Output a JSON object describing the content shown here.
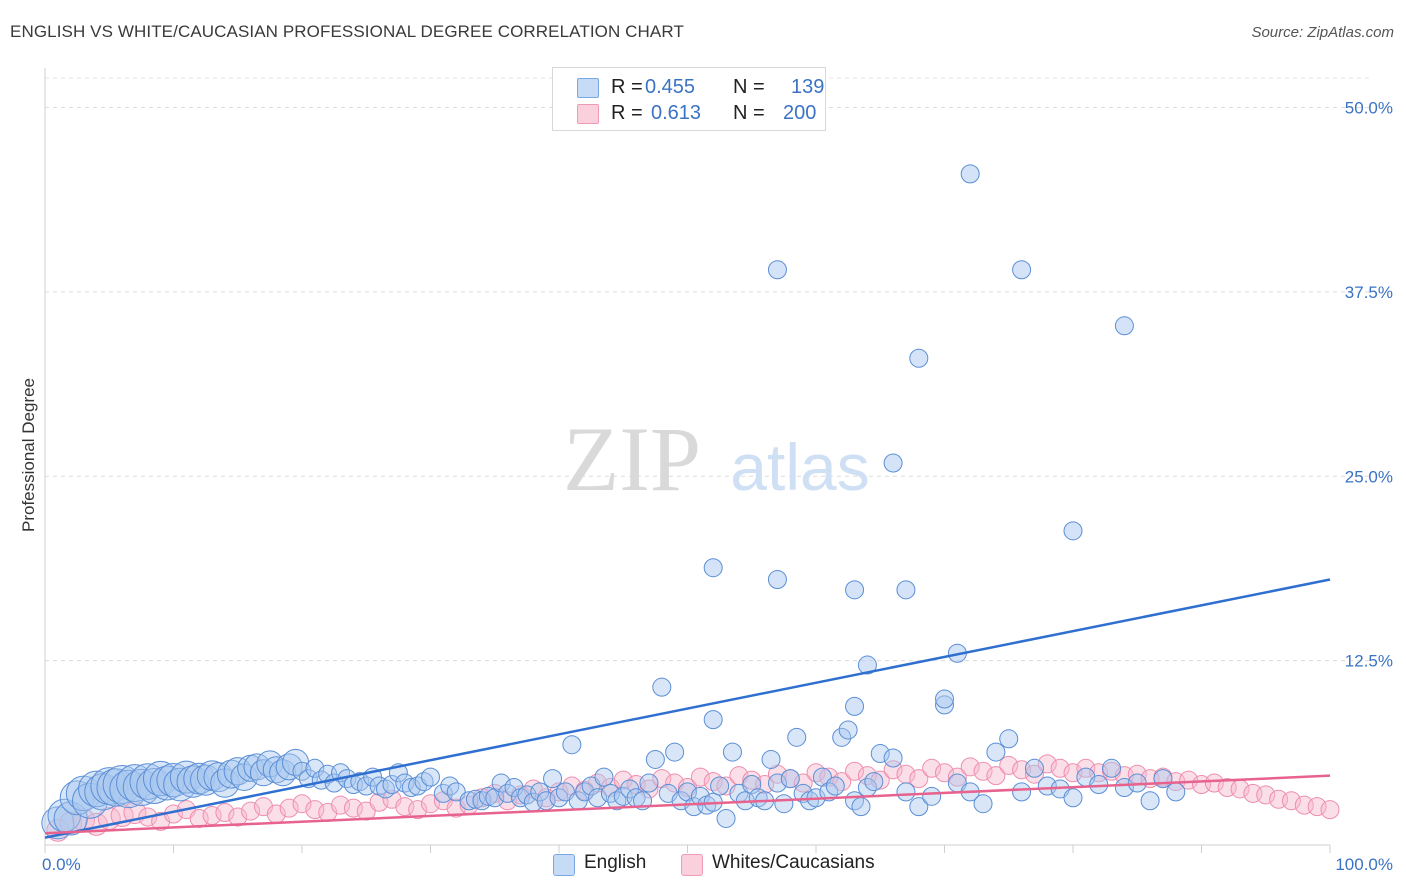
{
  "title": "ENGLISH VS WHITE/CAUCASIAN PROFESSIONAL DEGREE CORRELATION CHART",
  "source": "Source: ZipAtlas.com",
  "watermark": {
    "zip": "ZIP",
    "atlas": "atlas"
  },
  "legend_top": {
    "rows": [
      {
        "r_label": "R =",
        "r_value": "0.455",
        "n_label": "N =",
        "n_value": "139",
        "color": "#a9c8f0"
      },
      {
        "r_label": "R =",
        "r_value": "0.613",
        "n_label": "N =",
        "n_value": "200",
        "color": "#f6b8cb"
      }
    ]
  },
  "legend_bottom": {
    "english": "English",
    "whites": "Whites/Caucasians"
  },
  "chart_data": {
    "type": "scatter",
    "title": "ENGLISH VS WHITE/CAUCASIAN PROFESSIONAL DEGREE CORRELATION CHART",
    "xlabel": "",
    "ylabel": "Professional Degree",
    "xlim": [
      0,
      100
    ],
    "ylim": [
      0,
      52
    ],
    "x_tick_labels": [
      "0.0%",
      "100.0%"
    ],
    "y_ticks": [
      12.5,
      25.0,
      37.5,
      50.0
    ],
    "y_tick_labels": [
      "12.5%",
      "25.0%",
      "37.5%",
      "50.0%"
    ],
    "grid": true,
    "legend_position": "top-center",
    "series": [
      {
        "name": "English",
        "color": "#6d9fe0",
        "line_color": "#2f6fd0",
        "trend": {
          "x": [
            0,
            100
          ],
          "y": [
            0.5,
            18.0
          ]
        },
        "points": [
          [
            1,
            1.5
          ],
          [
            1.5,
            2
          ],
          [
            2,
            1.8
          ],
          [
            2.5,
            3.2
          ],
          [
            3,
            3.5
          ],
          [
            3.5,
            3.0
          ],
          [
            4,
            3.8
          ],
          [
            4.5,
            3.6
          ],
          [
            5,
            4.0
          ],
          [
            5.5,
            3.9
          ],
          [
            6,
            4.1
          ],
          [
            6.5,
            3.8
          ],
          [
            7,
            4.2
          ],
          [
            7.5,
            3.9
          ],
          [
            8,
            4.3
          ],
          [
            8.5,
            4.0
          ],
          [
            9,
            4.5
          ],
          [
            9.5,
            4.2
          ],
          [
            10,
            4.4
          ],
          [
            10.5,
            4.1
          ],
          [
            11,
            4.6
          ],
          [
            11.5,
            4.3
          ],
          [
            12,
            4.5
          ],
          [
            12.5,
            4.4
          ],
          [
            13,
            4.7
          ],
          [
            13.5,
            4.6
          ],
          [
            14,
            4.2
          ],
          [
            14.5,
            4.8
          ],
          [
            15,
            5.0
          ],
          [
            15.5,
            4.6
          ],
          [
            16,
            5.2
          ],
          [
            16.5,
            5.3
          ],
          [
            17,
            4.9
          ],
          [
            17.5,
            5.5
          ],
          [
            18,
            5.1
          ],
          [
            18.5,
            4.9
          ],
          [
            19,
            5.3
          ],
          [
            19.5,
            5.6
          ],
          [
            20,
            5.0
          ],
          [
            20.5,
            4.5
          ],
          [
            21,
            5.2
          ],
          [
            21.5,
            4.4
          ],
          [
            22,
            4.8
          ],
          [
            22.5,
            4.2
          ],
          [
            23,
            4.9
          ],
          [
            23.5,
            4.5
          ],
          [
            24,
            4.1
          ],
          [
            24.5,
            4.3
          ],
          [
            25,
            4.0
          ],
          [
            25.5,
            4.6
          ],
          [
            26,
            4.0
          ],
          [
            26.5,
            3.8
          ],
          [
            27,
            4.1
          ],
          [
            27.5,
            4.9
          ],
          [
            28,
            4.2
          ],
          [
            28.5,
            3.9
          ],
          [
            29,
            4.0
          ],
          [
            29.5,
            4.3
          ],
          [
            30,
            4.6
          ],
          [
            31,
            3.5
          ],
          [
            31.5,
            4.0
          ],
          [
            32,
            3.6
          ],
          [
            33,
            3.0
          ],
          [
            33.5,
            3.1
          ],
          [
            34,
            3.0
          ],
          [
            34.5,
            3.3
          ],
          [
            35,
            3.2
          ],
          [
            35.5,
            4.2
          ],
          [
            36,
            3.5
          ],
          [
            36.5,
            3.9
          ],
          [
            37,
            3.2
          ],
          [
            37.5,
            3.4
          ],
          [
            38,
            2.9
          ],
          [
            38.5,
            3.6
          ],
          [
            39,
            3.0
          ],
          [
            39.5,
            4.5
          ],
          [
            40,
            3.2
          ],
          [
            40.5,
            3.6
          ],
          [
            41,
            6.8
          ],
          [
            41.5,
            3.0
          ],
          [
            42,
            3.6
          ],
          [
            42.5,
            4.0
          ],
          [
            43,
            3.2
          ],
          [
            43.5,
            4.6
          ],
          [
            44,
            3.5
          ],
          [
            44.5,
            3.0
          ],
          [
            45,
            3.3
          ],
          [
            45.5,
            3.8
          ],
          [
            46,
            3.2
          ],
          [
            46.5,
            3.0
          ],
          [
            47,
            4.2
          ],
          [
            47.5,
            5.8
          ],
          [
            48,
            10.7
          ],
          [
            48.5,
            3.5
          ],
          [
            49,
            6.3
          ],
          [
            49.5,
            3.0
          ],
          [
            50,
            3.6
          ],
          [
            50.5,
            2.6
          ],
          [
            51,
            3.3
          ],
          [
            51.5,
            2.7
          ],
          [
            52,
            2.9
          ],
          [
            52.5,
            4.0
          ],
          [
            53,
            1.8
          ],
          [
            53.5,
            6.3
          ],
          [
            54,
            3.5
          ],
          [
            54.5,
            3.0
          ],
          [
            55,
            4.1
          ],
          [
            55.5,
            3.2
          ],
          [
            56,
            3.0
          ],
          [
            56.5,
            5.8
          ],
          [
            57,
            4.2
          ],
          [
            57.5,
            2.8
          ],
          [
            58,
            4.5
          ],
          [
            58.5,
            7.3
          ],
          [
            59,
            3.5
          ],
          [
            59.5,
            3.0
          ],
          [
            60,
            3.2
          ],
          [
            60.5,
            4.6
          ],
          [
            61,
            3.6
          ],
          [
            61.5,
            4.0
          ],
          [
            62,
            7.3
          ],
          [
            62.5,
            7.8
          ],
          [
            63,
            3.0
          ],
          [
            63.5,
            2.6
          ],
          [
            64,
            3.9
          ],
          [
            64.5,
            4.3
          ],
          [
            65,
            6.2
          ],
          [
            66,
            5.9
          ],
          [
            67,
            3.6
          ],
          [
            68,
            2.6
          ],
          [
            69,
            3.3
          ],
          [
            70,
            9.5
          ],
          [
            71,
            4.2
          ],
          [
            72,
            3.6
          ],
          [
            73,
            2.8
          ],
          [
            74,
            6.3
          ],
          [
            75,
            7.2
          ],
          [
            76,
            3.6
          ],
          [
            77,
            5.2
          ],
          [
            78,
            4.0
          ],
          [
            79,
            3.8
          ],
          [
            80,
            3.2
          ],
          [
            81,
            4.6
          ],
          [
            82,
            4.1
          ],
          [
            83,
            5.2
          ],
          [
            84,
            3.9
          ],
          [
            85,
            4.2
          ],
          [
            86,
            3.0
          ],
          [
            87,
            4.5
          ],
          [
            88,
            3.6
          ]
        ]
      },
      {
        "name": "Whites/Caucasians",
        "color": "#f39ab6",
        "line_color": "#e8628e",
        "trend": {
          "x": [
            0,
            100
          ],
          "y": [
            0.8,
            4.7
          ]
        },
        "points": [
          [
            1,
            1.0
          ],
          [
            2,
            1.5
          ],
          [
            3,
            1.7
          ],
          [
            4,
            1.4
          ],
          [
            5,
            1.8
          ],
          [
            6,
            2.0
          ],
          [
            7,
            2.2
          ],
          [
            8,
            1.9
          ],
          [
            9,
            1.6
          ],
          [
            10,
            2.1
          ],
          [
            11,
            2.4
          ],
          [
            12,
            1.8
          ],
          [
            13,
            2.0
          ],
          [
            14,
            2.2
          ],
          [
            15,
            1.9
          ],
          [
            16,
            2.3
          ],
          [
            17,
            2.6
          ],
          [
            18,
            2.1
          ],
          [
            19,
            2.5
          ],
          [
            20,
            2.8
          ],
          [
            21,
            2.4
          ],
          [
            22,
            2.2
          ],
          [
            23,
            2.7
          ],
          [
            24,
            2.5
          ],
          [
            25,
            2.3
          ],
          [
            26,
            2.9
          ],
          [
            27,
            3.1
          ],
          [
            28,
            2.6
          ],
          [
            29,
            2.4
          ],
          [
            30,
            2.8
          ],
          [
            31,
            3.0
          ],
          [
            32,
            2.5
          ],
          [
            33,
            2.7
          ],
          [
            34,
            3.2
          ],
          [
            35,
            3.5
          ],
          [
            36,
            3.0
          ],
          [
            37,
            3.4
          ],
          [
            38,
            3.8
          ],
          [
            39,
            3.2
          ],
          [
            40,
            3.6
          ],
          [
            41,
            4.0
          ],
          [
            42,
            3.7
          ],
          [
            43,
            4.2
          ],
          [
            44,
            3.9
          ],
          [
            45,
            4.4
          ],
          [
            46,
            4.1
          ],
          [
            47,
            3.8
          ],
          [
            48,
            4.5
          ],
          [
            49,
            4.2
          ],
          [
            50,
            3.9
          ],
          [
            51,
            4.6
          ],
          [
            52,
            4.3
          ],
          [
            53,
            4.0
          ],
          [
            54,
            4.7
          ],
          [
            55,
            4.4
          ],
          [
            56,
            4.1
          ],
          [
            57,
            4.8
          ],
          [
            58,
            4.5
          ],
          [
            59,
            4.2
          ],
          [
            60,
            4.9
          ],
          [
            61,
            4.6
          ],
          [
            62,
            4.3
          ],
          [
            63,
            5.0
          ],
          [
            64,
            4.7
          ],
          [
            65,
            4.4
          ],
          [
            66,
            5.1
          ],
          [
            67,
            4.8
          ],
          [
            68,
            4.5
          ],
          [
            69,
            5.2
          ],
          [
            70,
            4.9
          ],
          [
            71,
            4.6
          ],
          [
            72,
            5.3
          ],
          [
            73,
            5.0
          ],
          [
            74,
            4.7
          ],
          [
            75,
            5.4
          ],
          [
            76,
            5.1
          ],
          [
            77,
            4.8
          ],
          [
            78,
            5.5
          ],
          [
            79,
            5.2
          ],
          [
            80,
            4.9
          ],
          [
            81,
            5.2
          ],
          [
            82,
            4.9
          ],
          [
            83,
            5.0
          ],
          [
            84,
            4.7
          ],
          [
            85,
            4.8
          ],
          [
            86,
            4.5
          ],
          [
            87,
            4.6
          ],
          [
            88,
            4.3
          ],
          [
            89,
            4.4
          ],
          [
            90,
            4.1
          ],
          [
            91,
            4.2
          ],
          [
            92,
            3.9
          ],
          [
            93,
            3.8
          ],
          [
            94,
            3.5
          ],
          [
            95,
            3.4
          ],
          [
            96,
            3.1
          ],
          [
            97,
            3.0
          ],
          [
            98,
            2.7
          ],
          [
            99,
            2.6
          ],
          [
            100,
            2.4
          ]
        ]
      }
    ]
  }
}
